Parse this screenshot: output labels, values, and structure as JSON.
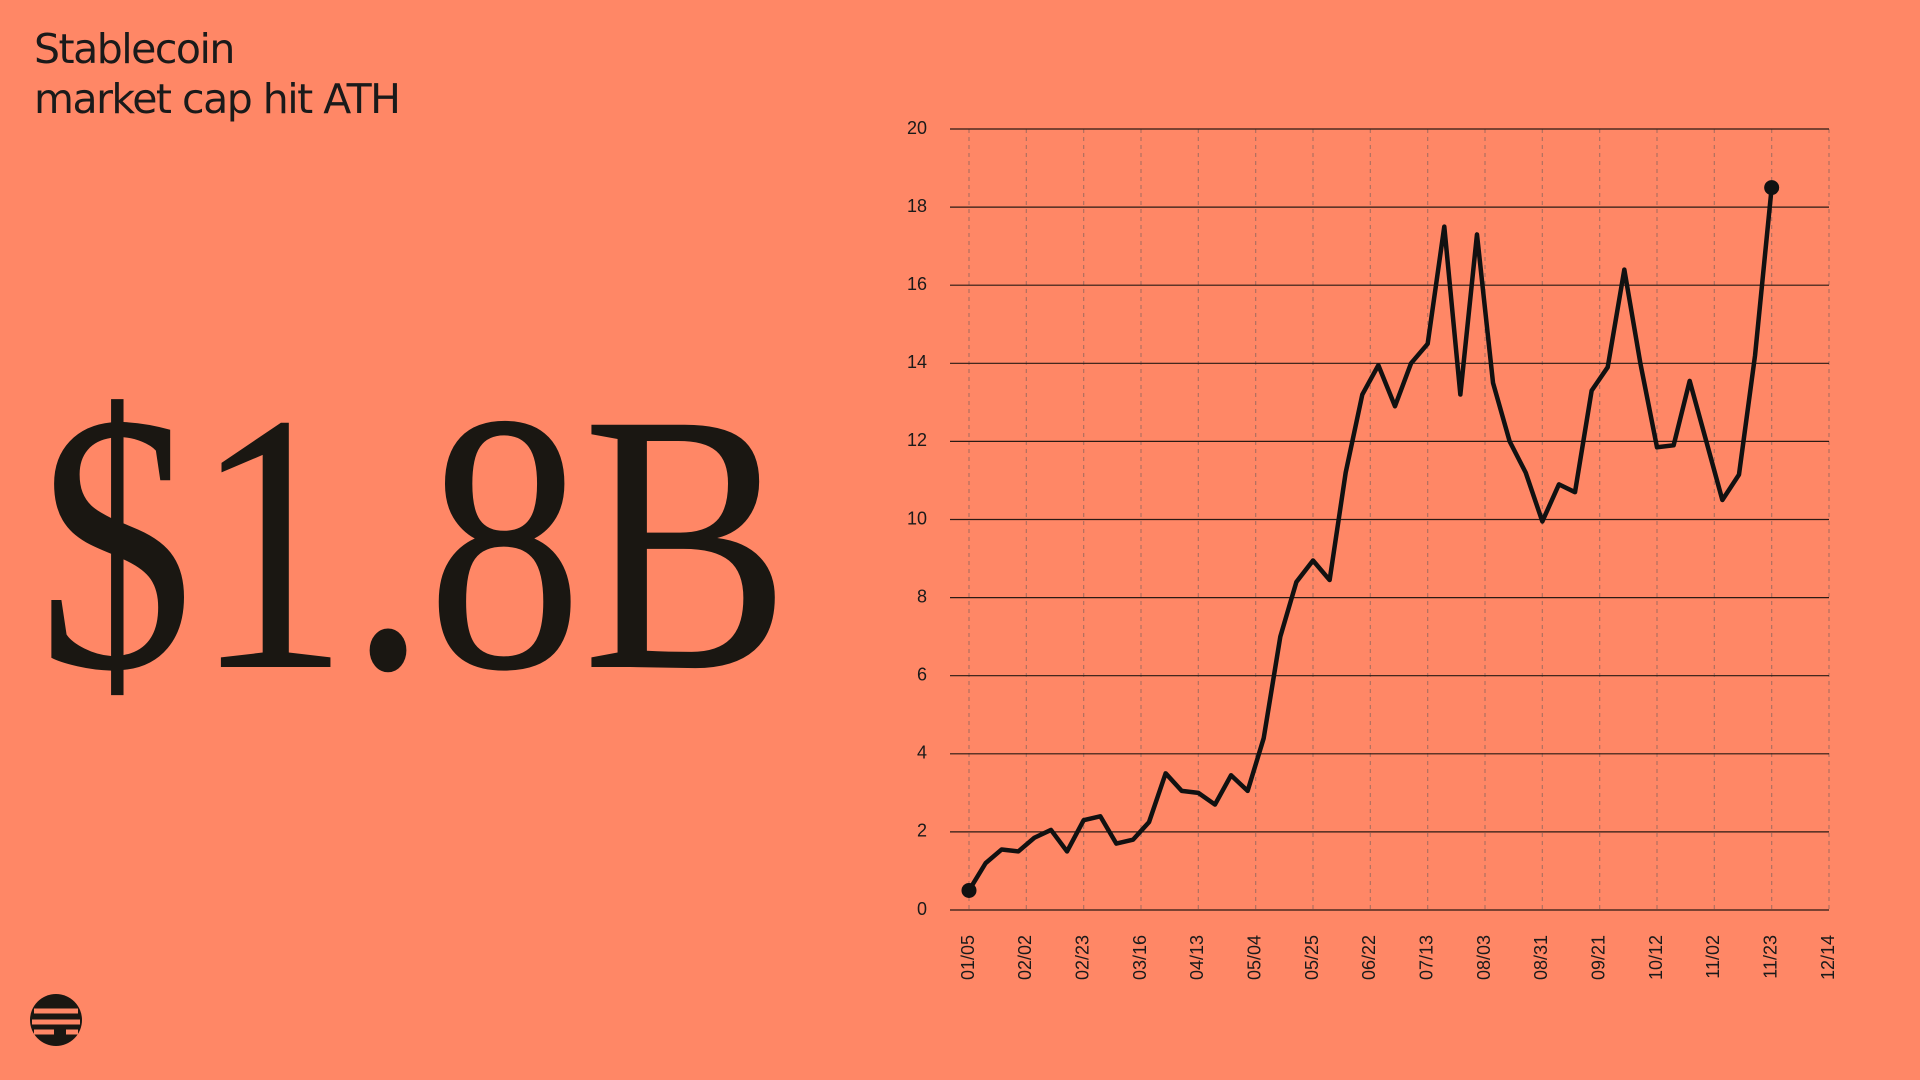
{
  "chart_data": {
    "type": "line",
    "title": [
      "Stablecoin",
      "market cap hit ATH"
    ],
    "headline": "$1.8B",
    "x": [
      0,
      0.29,
      0.57,
      0.86,
      1.14,
      1.43,
      1.71,
      2,
      2.29,
      2.57,
      2.86,
      3.14,
      3.43,
      3.71,
      4,
      4.29,
      4.57,
      4.86,
      5.14,
      5.43,
      5.71,
      6,
      6.29,
      6.57,
      6.86,
      7.14,
      7.43,
      7.71,
      8,
      8.29,
      8.57,
      8.86,
      9.14,
      9.43,
      9.71,
      10,
      10.29,
      10.57,
      10.86,
      11.14,
      11.43,
      11.71,
      12,
      12.29,
      12.57,
      12.86,
      13.14,
      13.43,
      13.71,
      14
    ],
    "series": [
      {
        "color": "#111111",
        "values": [
          0.5,
          1.2,
          1.55,
          1.5,
          1.85,
          2.05,
          1.5,
          2.3,
          2.4,
          1.7,
          1.8,
          2.25,
          3.5,
          3.05,
          3.0,
          2.7,
          3.45,
          3.05,
          4.4,
          7.0,
          8.4,
          8.95,
          8.45,
          11.2,
          13.2,
          13.95,
          12.9,
          14.0,
          14.5,
          17.5,
          13.2,
          17.3,
          13.5,
          12.0,
          11.2,
          9.95,
          10.9,
          10.7,
          13.3,
          13.9,
          16.4,
          14.0,
          11.85,
          11.9,
          13.55,
          12.0,
          10.5,
          11.15,
          14.2,
          18.5
        ]
      }
    ],
    "xlim": [
      0,
      15
    ],
    "xticks": [
      {
        "value": 0,
        "label": "01/05"
      },
      {
        "value": 1,
        "label": "02/02"
      },
      {
        "value": 2,
        "label": "02/23"
      },
      {
        "value": 3,
        "label": "03/16"
      },
      {
        "value": 4,
        "label": "04/13"
      },
      {
        "value": 5,
        "label": "05/04"
      },
      {
        "value": 6,
        "label": "05/25"
      },
      {
        "value": 7,
        "label": "06/22"
      },
      {
        "value": 8,
        "label": "07/13"
      },
      {
        "value": 9,
        "label": "08/03"
      },
      {
        "value": 10,
        "label": "08/31"
      },
      {
        "value": 11,
        "label": "09/21"
      },
      {
        "value": 12,
        "label": "10/12"
      },
      {
        "value": 13,
        "label": "11/02"
      },
      {
        "value": 14,
        "label": "11/23"
      },
      {
        "value": 15,
        "label": "12/14"
      }
    ],
    "ylim": [
      0,
      20
    ],
    "yticks": [
      0,
      2,
      4,
      6,
      8,
      10,
      12,
      14,
      16,
      18,
      20
    ],
    "grid": true
  }
}
